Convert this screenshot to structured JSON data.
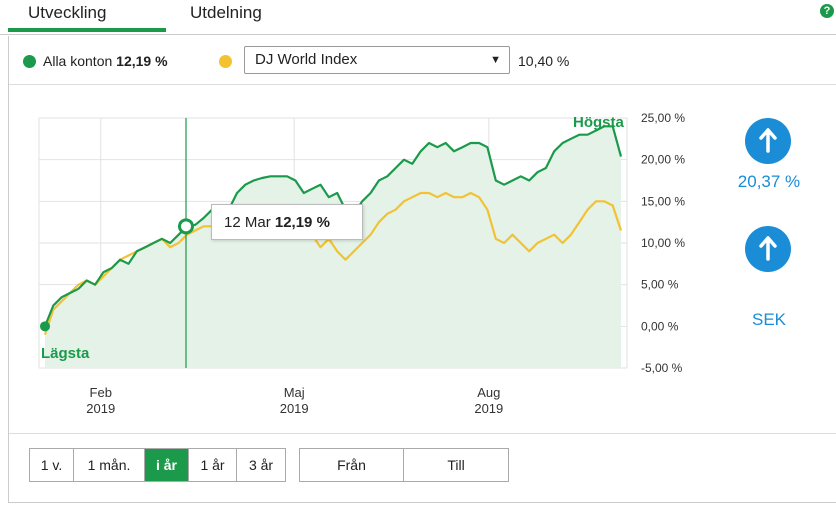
{
  "tabs": [
    {
      "label": "Utveckling",
      "active": true
    },
    {
      "label": "Utdelning",
      "active": false
    }
  ],
  "help_icon": "help-icon",
  "legend": {
    "main_label": "Alla konton",
    "main_value": "12,19 %",
    "main_color": "#1a9a4a",
    "compare_color": "#f2c232",
    "compare_selected": "DJ World Index",
    "compare_value": "10,40 %"
  },
  "tooltip": {
    "date": "12 Mar",
    "value": "12,19 %"
  },
  "side": {
    "total_value": "20,37 %",
    "currency": "SEK",
    "up_icon": "arrow-up-icon"
  },
  "periods": [
    {
      "label": "1 v.",
      "active": false
    },
    {
      "label": "1 mån.",
      "active": false
    },
    {
      "label": "i år",
      "active": true
    },
    {
      "label": "1 år",
      "active": false
    },
    {
      "label": "3 år",
      "active": false
    }
  ],
  "range_buttons": {
    "from": "Från",
    "to": "Till"
  },
  "chart_data": {
    "type": "line",
    "x_ticks": [
      {
        "month": "Feb",
        "year": "2019",
        "pos": 0.105
      },
      {
        "month": "Maj",
        "year": "2019",
        "pos": 0.434
      },
      {
        "month": "Aug",
        "year": "2019",
        "pos": 0.765
      }
    ],
    "ylim": [
      -5,
      25
    ],
    "y_ticks": [
      "25,00 %",
      "20,00 %",
      "15,00 %",
      "10,00 %",
      "5,00 %",
      "0,00 %",
      "-5,00 %"
    ],
    "y_tick_values": [
      25,
      20,
      15,
      10,
      5,
      0,
      -5
    ],
    "grid": true,
    "high_label": "Högsta",
    "low_label": "Lägsta",
    "crosshair_x": 0.25,
    "series": [
      {
        "name": "Alla konton",
        "color": "#1a9a4a",
        "fill": true,
        "values": [
          0,
          2.5,
          3.5,
          4.0,
          4.5,
          5.5,
          5.0,
          6.5,
          7.0,
          8.0,
          7.5,
          9.0,
          9.5,
          10.0,
          10.5,
          10.0,
          11.0,
          12.0,
          12.19,
          13.0,
          14.0,
          14.5,
          14.0,
          16.0,
          17.0,
          17.5,
          17.8,
          18.0,
          18.0,
          18.0,
          17.5,
          16.0,
          16.5,
          17.0,
          15.5,
          16.0,
          14.0,
          13.5,
          15.0,
          16.0,
          17.5,
          18.0,
          19.0,
          20.0,
          19.5,
          21.0,
          22.0,
          21.5,
          22.0,
          21.0,
          21.5,
          22.0,
          22.0,
          21.5,
          17.5,
          17.0,
          17.5,
          18.0,
          17.5,
          18.5,
          19.0,
          21.0,
          22.0,
          22.5,
          23.0,
          23.0,
          23.5,
          24.0,
          24.0,
          20.37
        ]
      },
      {
        "name": "DJ World Index",
        "color": "#f2c232",
        "fill": false,
        "values": [
          -1.0,
          2.0,
          3.0,
          4.0,
          5.0,
          5.5,
          5.0,
          6.0,
          7.0,
          8.0,
          8.5,
          9.0,
          9.5,
          10.0,
          10.5,
          9.5,
          10.0,
          11.0,
          11.5,
          12.0,
          12.0,
          13.0,
          12.5,
          13.0,
          12.5,
          13.0,
          12.5,
          11.5,
          11.0,
          12.0,
          11.0,
          10.5,
          11.0,
          9.5,
          10.5,
          9.0,
          8.0,
          9.0,
          10.0,
          11.0,
          12.5,
          13.5,
          14.0,
          15.0,
          15.5,
          16.0,
          16.0,
          15.5,
          16.0,
          15.5,
          15.5,
          16.0,
          15.5,
          14.0,
          10.5,
          10.0,
          11.0,
          10.0,
          9.0,
          10.0,
          10.5,
          11.0,
          10.0,
          11.0,
          12.5,
          14.0,
          15.0,
          15.0,
          14.5,
          11.5
        ]
      }
    ]
  }
}
